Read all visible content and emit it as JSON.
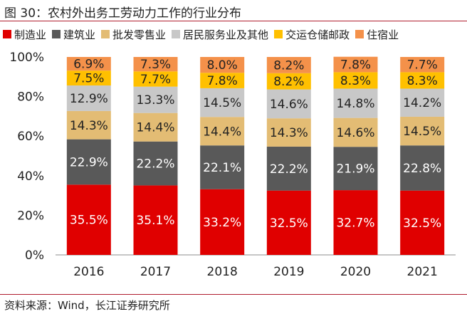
{
  "figure": {
    "title": "图 30：农村外出务工劳动力工作的行业分布",
    "source": "资料来源：Wind，长江证券研究所"
  },
  "chart_data": {
    "type": "bar",
    "stacked": true,
    "categories": [
      "2016",
      "2017",
      "2018",
      "2019",
      "2020",
      "2021"
    ],
    "ylim": [
      0,
      100
    ],
    "yticks": [
      "0%",
      "20%",
      "40%",
      "60%",
      "80%",
      "100%"
    ],
    "ytick_values": [
      0,
      20,
      40,
      60,
      80,
      100
    ],
    "legend_position": "top",
    "series": [
      {
        "name": "制造业",
        "color": "#e00000",
        "label_color": "#ffffff",
        "values": [
          35.5,
          35.1,
          33.2,
          32.5,
          32.7,
          32.5
        ],
        "labels": [
          "35.5%",
          "35.1%",
          "33.2%",
          "32.5%",
          "32.7%",
          "32.5%"
        ]
      },
      {
        "name": "建筑业",
        "color": "#595959",
        "label_color": "#ffffff",
        "values": [
          22.9,
          22.2,
          22.1,
          22.2,
          21.9,
          22.8
        ],
        "labels": [
          "22.9%",
          "22.2%",
          "22.1%",
          "22.2%",
          "21.9%",
          "22.8%"
        ]
      },
      {
        "name": "批发零售业",
        "color": "#e3bc74",
        "label_color": "#222222",
        "values": [
          14.3,
          14.4,
          14.4,
          14.3,
          14.6,
          14.5
        ],
        "labels": [
          "14.3%",
          "14.4%",
          "14.4%",
          "14.3%",
          "14.6%",
          "14.5%"
        ]
      },
      {
        "name": "居民服务业及其他",
        "color": "#c8c8c8",
        "label_color": "#222222",
        "values": [
          12.9,
          13.3,
          14.5,
          14.6,
          14.8,
          14.2
        ],
        "labels": [
          "12.9%",
          "13.3%",
          "14.5%",
          "14.6%",
          "14.8%",
          "14.2%"
        ]
      },
      {
        "name": "交运仓储邮政",
        "color": "#ffc000",
        "label_color": "#222222",
        "values": [
          7.5,
          7.7,
          7.8,
          8.2,
          8.3,
          8.3
        ],
        "labels": [
          "7.5%",
          "7.7%",
          "7.8%",
          "8.2%",
          "8.3%",
          "8.3%"
        ]
      },
      {
        "name": "住宿业",
        "color": "#f4914a",
        "label_color": "#222222",
        "values": [
          6.9,
          7.3,
          8.0,
          8.2,
          7.8,
          7.7
        ],
        "labels": [
          "6.9%",
          "7.3%",
          "8.0%",
          "8.2%",
          "7.8%",
          "7.7%"
        ]
      }
    ]
  }
}
